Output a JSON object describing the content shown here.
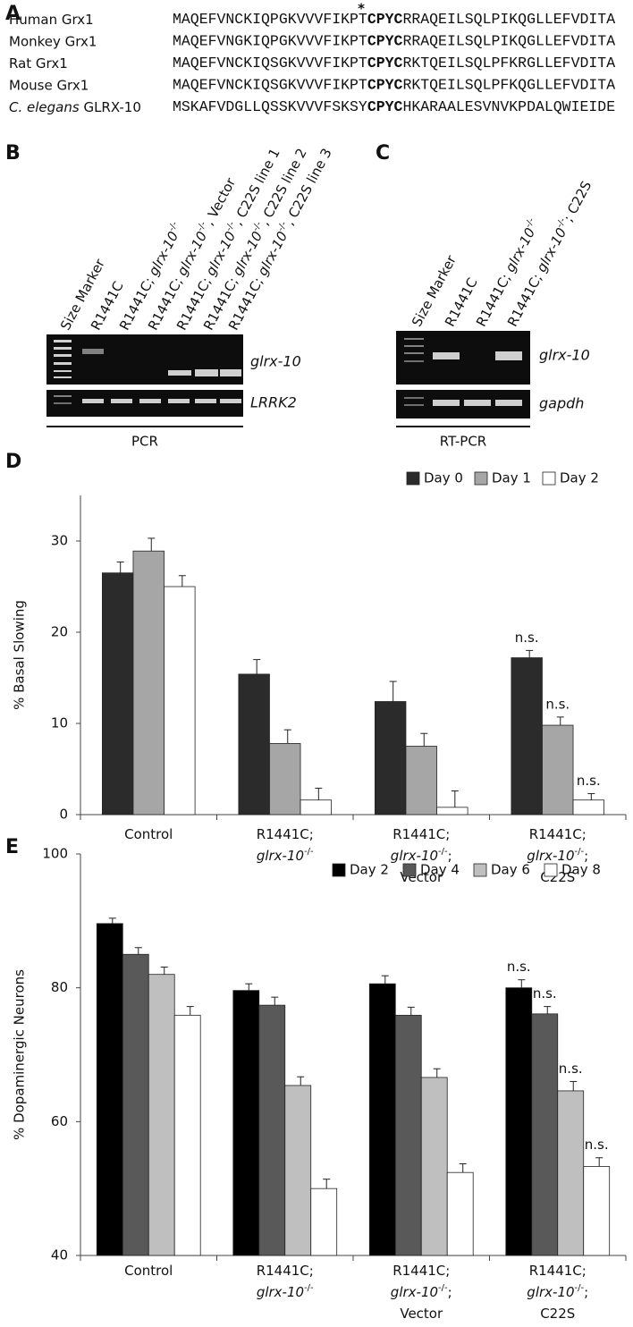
{
  "panel_a": {
    "label": "A",
    "marker": "*",
    "rows": [
      {
        "name": [
          {
            "text": "Human Grx1"
          }
        ],
        "before": "MAQEFVNCKIQPGKVVVFIKPT",
        "motif": "CPYC",
        "after": "RRAQEILSQLPIKQGLLEFVDITA"
      },
      {
        "name": [
          {
            "text": "Monkey Grx1"
          }
        ],
        "before": "MAQEFVNGKIQPGKVVVFIKPT",
        "motif": "CPYC",
        "after": "RRAQEILSQLPIKQGLLEFVDITA"
      },
      {
        "name": [
          {
            "text": "Rat Grx1"
          }
        ],
        "before": "MAQEFVNCKIQSGKVVVFIKPT",
        "motif": "CPYC",
        "after": "RKTQEILSQLPFKRGLLEFVDITA"
      },
      {
        "name": [
          {
            "text": "Mouse Grx1"
          }
        ],
        "before": "MAQEFVNCKIQSGKVVVFIKPT",
        "motif": "CPYC",
        "after": "RKTQEILSQLPFKQGLLEFVDITA"
      },
      {
        "name": [
          {
            "text": "C. elegans",
            "italic": true
          },
          {
            "text": " GLRX-10"
          }
        ],
        "before": "MSKAFVDGLLQSSKVVVFSKSY",
        "motif": "CPYC",
        "after": "HKARAALESVNVKPDALQWIEIDE"
      }
    ]
  },
  "panel_b": {
    "label": "B",
    "lanes": [
      [
        {
          "text": "Size Marker"
        }
      ],
      [
        {
          "text": "R1441C"
        }
      ],
      [
        {
          "text": "R1441C; "
        },
        {
          "text": "glrx-10",
          "italic": true
        },
        {
          "text": "-/-",
          "sup": true
        }
      ],
      [
        {
          "text": "R1441C; "
        },
        {
          "text": "glrx-10",
          "italic": true
        },
        {
          "text": "-/-",
          "sup": true
        },
        {
          "text": ", Vector"
        }
      ],
      [
        {
          "text": "R1441C; "
        },
        {
          "text": "glrx-10",
          "italic": true
        },
        {
          "text": "-/-",
          "sup": true
        },
        {
          "text": ", C22S line 1"
        }
      ],
      [
        {
          "text": "R1441C; "
        },
        {
          "text": "glrx-10",
          "italic": true
        },
        {
          "text": "-/-",
          "sup": true
        },
        {
          "text": ", C22S line 2"
        }
      ],
      [
        {
          "text": "R1441C; "
        },
        {
          "text": "glrx-10",
          "italic": true
        },
        {
          "text": "-/-",
          "sup": true
        },
        {
          "text": ", C22S line 3"
        }
      ]
    ],
    "gene_top": "glrx-10",
    "gene_bottom": "LRRK2",
    "method": "PCR"
  },
  "panel_c": {
    "label": "C",
    "lanes": [
      [
        {
          "text": "Size Marker"
        }
      ],
      [
        {
          "text": "R1441C"
        }
      ],
      [
        {
          "text": "R1441C; "
        },
        {
          "text": "glrx-10",
          "italic": true
        },
        {
          "text": "-/-",
          "sup": true
        }
      ],
      [
        {
          "text": "R1441C; "
        },
        {
          "text": "glrx-10",
          "italic": true
        },
        {
          "text": "-/-",
          "sup": true
        },
        {
          "text": "; C22S"
        }
      ]
    ],
    "gene_top": "glrx-10",
    "gene_bottom": "gapdh",
    "method": "RT-PCR"
  },
  "chart_data": [
    {
      "type": "bar",
      "panel_label": "D",
      "y_label": "% Basal Slowing",
      "categories": [
        [
          [
            {
              "text": "Control"
            }
          ]
        ],
        [
          [
            {
              "text": "R1441C;"
            }
          ],
          [
            {
              "text": "glrx-10",
              "italic": true
            },
            {
              "text": "-/-",
              "sup": true
            }
          ]
        ],
        [
          [
            {
              "text": "R1441C;"
            }
          ],
          [
            {
              "text": "glrx-10",
              "italic": true
            },
            {
              "text": "-/-",
              "sup": true
            },
            {
              "text": ";"
            }
          ],
          [
            {
              "text": "Vector"
            }
          ]
        ],
        [
          [
            {
              "text": "R1441C;"
            }
          ],
          [
            {
              "text": "glrx-10",
              "italic": true
            },
            {
              "text": "-/-",
              "sup": true
            },
            {
              "text": ";"
            }
          ],
          [
            {
              "text": "C22S"
            }
          ]
        ]
      ],
      "series": [
        {
          "name": "Day 0",
          "color": "#2b2b2b",
          "values": [
            26.5,
            15.4,
            12.4,
            17.2
          ],
          "errors": [
            1.2,
            1.6,
            2.2,
            0.8
          ],
          "annotations": [
            null,
            null,
            null,
            "n.s."
          ]
        },
        {
          "name": "Day 1",
          "color": "#a6a6a6",
          "values": [
            28.9,
            7.8,
            7.5,
            9.8
          ],
          "errors": [
            1.4,
            1.5,
            1.4,
            0.9
          ],
          "annotations": [
            null,
            null,
            null,
            "n.s."
          ]
        },
        {
          "name": "Day 2",
          "color": "#ffffff",
          "values": [
            25.0,
            1.6,
            0.8,
            1.6
          ],
          "errors": [
            1.2,
            1.3,
            1.8,
            0.7
          ],
          "annotations": [
            null,
            null,
            null,
            "n.s."
          ]
        }
      ],
      "ylim": [
        0,
        35
      ],
      "yticks": [
        0,
        10,
        20,
        30
      ],
      "legend": "top-right"
    },
    {
      "type": "bar",
      "panel_label": "E",
      "y_label": "% Dopaminergic Neurons",
      "categories": [
        [
          [
            {
              "text": "Control"
            }
          ]
        ],
        [
          [
            {
              "text": "R1441C;"
            }
          ],
          [
            {
              "text": "glrx-10",
              "italic": true
            },
            {
              "text": "-/-",
              "sup": true
            }
          ]
        ],
        [
          [
            {
              "text": "R1441C;"
            }
          ],
          [
            {
              "text": "glrx-10",
              "italic": true
            },
            {
              "text": "-/-",
              "sup": true
            },
            {
              "text": ";"
            }
          ],
          [
            {
              "text": "Vector"
            }
          ]
        ],
        [
          [
            {
              "text": "R1441C;"
            }
          ],
          [
            {
              "text": "glrx-10",
              "italic": true
            },
            {
              "text": "-/-",
              "sup": true
            },
            {
              "text": ";"
            }
          ],
          [
            {
              "text": "C22S"
            }
          ]
        ]
      ],
      "series": [
        {
          "name": "Day 2",
          "color": "#000000",
          "values": [
            89.6,
            79.6,
            80.6,
            80.0
          ],
          "errors": [
            0.8,
            1.0,
            1.2,
            1.2
          ],
          "annotations": [
            null,
            null,
            null,
            "n.s."
          ]
        },
        {
          "name": "Day 4",
          "color": "#595959",
          "values": [
            85.0,
            77.4,
            75.9,
            76.1
          ],
          "errors": [
            1.0,
            1.2,
            1.2,
            1.1
          ],
          "annotations": [
            null,
            null,
            null,
            "n.s."
          ]
        },
        {
          "name": "Day 6",
          "color": "#bfbfbf",
          "values": [
            82.0,
            65.4,
            66.6,
            64.6
          ],
          "errors": [
            1.1,
            1.3,
            1.3,
            1.4
          ],
          "annotations": [
            null,
            null,
            null,
            "n.s."
          ]
        },
        {
          "name": "Day 8",
          "color": "#ffffff",
          "values": [
            75.9,
            50.0,
            52.4,
            53.3
          ],
          "errors": [
            1.3,
            1.4,
            1.3,
            1.3
          ],
          "annotations": [
            null,
            null,
            null,
            "n.s."
          ]
        }
      ],
      "ylim": [
        40,
        100
      ],
      "yticks": [
        40,
        60,
        80,
        100
      ],
      "legend": "top-right"
    }
  ]
}
